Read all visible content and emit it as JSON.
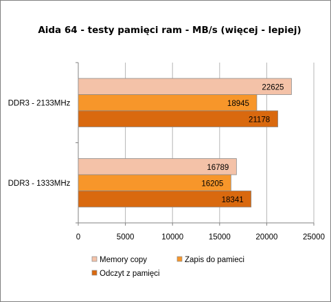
{
  "chart_data": {
    "type": "bar",
    "orientation": "horizontal",
    "title": "Aida 64 - testy pamięci ram - MB/s (więcej - lepiej)",
    "categories": [
      "DDR3 - 2133MHz",
      "DDR3 - 1333MHz"
    ],
    "series": [
      {
        "name": "Memory copy",
        "values": [
          22625,
          16789
        ],
        "color": "#f4c2a8"
      },
      {
        "name": "Zapis do pamieci",
        "values": [
          18945,
          16205
        ],
        "color": "#f7962a"
      },
      {
        "name": "Odczyt z pamięci",
        "values": [
          21178,
          18341
        ],
        "color": "#d9690f"
      }
    ],
    "xlim": [
      0,
      25000
    ],
    "xticks": [
      "0",
      "5000",
      "10000",
      "15000",
      "20000",
      "25000"
    ],
    "grid": true,
    "legend_position": "bottom"
  }
}
